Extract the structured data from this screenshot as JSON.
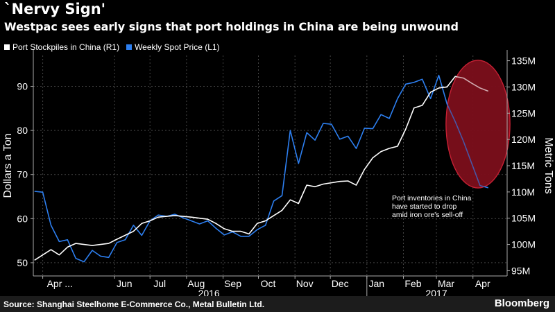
{
  "header": {
    "title": "`Nervy Sign'",
    "subtitle": "Westpac sees early signs that port holdings in China are being unwound"
  },
  "legend": [
    {
      "label": "Port Stockpiles in China (R1)",
      "color": "#ffffff"
    },
    {
      "label": "Weekly Spot Price (L1)",
      "color": "#2d7ff0"
    }
  ],
  "footer": {
    "source": "Source: Shanghai Steelhome E-Commerce Co., Metal Bulletin Ltd.",
    "brand": "Bloomberg"
  },
  "chart_data": {
    "type": "line",
    "left_axis": {
      "label": "Dollars a Ton",
      "ticks": [
        50,
        60,
        70,
        80,
        90
      ],
      "range": [
        47,
        97
      ]
    },
    "right_axis": {
      "label": "Metric Tons",
      "ticks": [
        "95M",
        "100M",
        "105M",
        "110M",
        "115M",
        "120M",
        "125M",
        "130M",
        "135M"
      ],
      "tick_values": [
        95,
        100,
        105,
        110,
        115,
        120,
        125,
        130,
        135
      ],
      "range": [
        94,
        136
      ]
    },
    "x_ticks": [
      "Apr ...",
      "Jun",
      "Jul",
      "Aug",
      "Sep",
      "Oct",
      "Nov",
      "Dec",
      "Jan",
      "Feb",
      "Mar",
      "Apr"
    ],
    "x_tick_dates": [
      "2016-04-01",
      "2016-06-01",
      "2016-07-01",
      "2016-08-01",
      "2016-09-01",
      "2016-10-01",
      "2016-11-01",
      "2016-12-01",
      "2017-01-01",
      "2017-02-01",
      "2017-03-01",
      "2017-04-01"
    ],
    "year_labels": [
      {
        "label": "2016",
        "date": "2016-08-20"
      },
      {
        "label": "2017",
        "date": "2017-03-01"
      }
    ],
    "x_range": [
      "2016-03-24",
      "2017-04-30"
    ],
    "series": [
      {
        "name": "Weekly Spot Price (L1)",
        "axis": "left",
        "color": "#2d7ff0",
        "points": [
          [
            "2016-03-25",
            66.2
          ],
          [
            "2016-04-01",
            66.0
          ],
          [
            "2016-04-08",
            58.5
          ],
          [
            "2016-04-15",
            54.8
          ],
          [
            "2016-04-22",
            55.2
          ],
          [
            "2016-04-29",
            51.0
          ],
          [
            "2016-05-06",
            50.2
          ],
          [
            "2016-05-13",
            52.8
          ],
          [
            "2016-05-20",
            51.5
          ],
          [
            "2016-05-27",
            51.2
          ],
          [
            "2016-06-03",
            54.6
          ],
          [
            "2016-06-10",
            55.2
          ],
          [
            "2016-06-17",
            58.5
          ],
          [
            "2016-06-24",
            56.2
          ],
          [
            "2016-07-01",
            59.5
          ],
          [
            "2016-07-08",
            60.8
          ],
          [
            "2016-07-15",
            60.5
          ],
          [
            "2016-07-22",
            61.0
          ],
          [
            "2016-07-29",
            60.2
          ],
          [
            "2016-08-05",
            59.5
          ],
          [
            "2016-08-12",
            58.8
          ],
          [
            "2016-08-19",
            59.5
          ],
          [
            "2016-08-26",
            57.8
          ],
          [
            "2016-09-02",
            56.3
          ],
          [
            "2016-09-09",
            57.0
          ],
          [
            "2016-09-16",
            56.0
          ],
          [
            "2016-09-23",
            56.0
          ],
          [
            "2016-09-30",
            57.5
          ],
          [
            "2016-10-07",
            58.5
          ],
          [
            "2016-10-14",
            64.0
          ],
          [
            "2016-10-21",
            65.2
          ],
          [
            "2016-10-28",
            80.0
          ],
          [
            "2016-11-04",
            72.5
          ],
          [
            "2016-11-11",
            79.5
          ],
          [
            "2016-11-18",
            77.8
          ],
          [
            "2016-11-25",
            81.6
          ],
          [
            "2016-12-02",
            81.4
          ],
          [
            "2016-12-09",
            78.0
          ],
          [
            "2016-12-16",
            78.7
          ],
          [
            "2016-12-23",
            75.9
          ],
          [
            "2016-12-30",
            80.5
          ],
          [
            "2017-01-06",
            80.4
          ],
          [
            "2017-01-13",
            83.6
          ],
          [
            "2017-01-20",
            82.7
          ],
          [
            "2017-01-27",
            87.2
          ],
          [
            "2017-02-03",
            90.5
          ],
          [
            "2017-02-10",
            90.9
          ],
          [
            "2017-02-17",
            91.6
          ],
          [
            "2017-02-24",
            87.2
          ],
          [
            "2017-03-03",
            92.5
          ],
          [
            "2017-03-10",
            86.0
          ],
          [
            "2017-03-17",
            82.0
          ],
          [
            "2017-03-24",
            77.5
          ],
          [
            "2017-03-31",
            72.5
          ],
          [
            "2017-04-07",
            67.5
          ],
          [
            "2017-04-14",
            67.0
          ]
        ]
      },
      {
        "name": "Port Stockpiles in China (R1)",
        "axis": "right",
        "color": "#ffffff",
        "points": [
          [
            "2016-03-25",
            97.0
          ],
          [
            "2016-04-01",
            98.0
          ],
          [
            "2016-04-08",
            99.0
          ],
          [
            "2016-04-15",
            98.0
          ],
          [
            "2016-04-22",
            99.5
          ],
          [
            "2016-04-29",
            100.2
          ],
          [
            "2016-05-13",
            99.8
          ],
          [
            "2016-05-27",
            100.2
          ],
          [
            "2016-06-03",
            101.0
          ],
          [
            "2016-06-17",
            102.5
          ],
          [
            "2016-06-24",
            104.0
          ],
          [
            "2016-07-01",
            104.5
          ],
          [
            "2016-07-08",
            105.2
          ],
          [
            "2016-07-22",
            105.5
          ],
          [
            "2016-08-05",
            105.2
          ],
          [
            "2016-08-19",
            104.8
          ],
          [
            "2016-08-26",
            104.0
          ],
          [
            "2016-09-02",
            103.0
          ],
          [
            "2016-09-09",
            102.5
          ],
          [
            "2016-09-16",
            102.5
          ],
          [
            "2016-09-23",
            102.0
          ],
          [
            "2016-09-30",
            104.0
          ],
          [
            "2016-10-07",
            104.5
          ],
          [
            "2016-10-14",
            105.5
          ],
          [
            "2016-10-21",
            106.5
          ],
          [
            "2016-10-28",
            108.5
          ],
          [
            "2016-11-04",
            107.8
          ],
          [
            "2016-11-11",
            111.3
          ],
          [
            "2016-11-18",
            111.0
          ],
          [
            "2016-11-25",
            111.5
          ],
          [
            "2016-12-09",
            112.0
          ],
          [
            "2016-12-16",
            112.1
          ],
          [
            "2016-12-23",
            111.3
          ],
          [
            "2016-12-30",
            114.3
          ],
          [
            "2017-01-06",
            116.5
          ],
          [
            "2017-01-13",
            117.7
          ],
          [
            "2017-01-20",
            118.3
          ],
          [
            "2017-01-27",
            118.7
          ],
          [
            "2017-02-03",
            122.0
          ],
          [
            "2017-02-10",
            126.0
          ],
          [
            "2017-02-17",
            126.5
          ],
          [
            "2017-02-24",
            129.0
          ],
          [
            "2017-03-03",
            129.8
          ],
          [
            "2017-03-10",
            130.0
          ],
          [
            "2017-03-17",
            132.0
          ],
          [
            "2017-03-24",
            131.7
          ],
          [
            "2017-03-31",
            130.7
          ],
          [
            "2017-04-07",
            129.8
          ],
          [
            "2017-04-14",
            129.2
          ]
        ]
      }
    ],
    "annotation": "Port inventories in China\nhave started to drop\namid iron ore's sell-off",
    "highlight_color": "#7a0f1c",
    "grid": true
  }
}
